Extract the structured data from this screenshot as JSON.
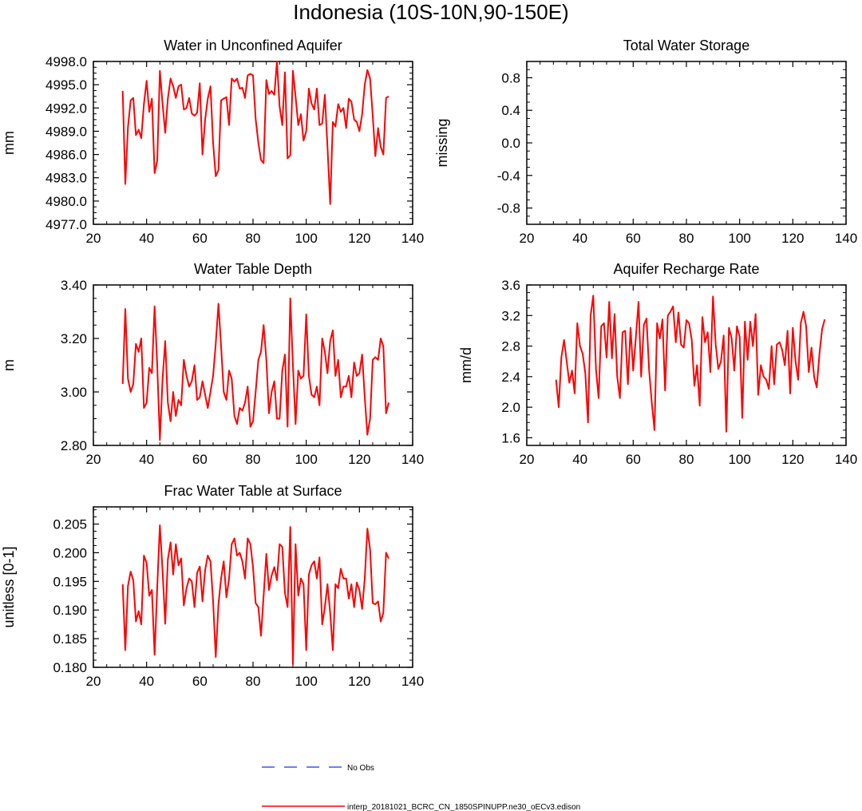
{
  "page_title": "Indonesia (10S-10N,90-150E)",
  "colors": {
    "model": "#ff0000",
    "obs": "#3355ff",
    "axis": "#000000"
  },
  "legend": {
    "obs_label": "No Obs",
    "model_label": "interp_20181021_BCRC_CN_1850SPINUPP.ne30_oECv3.edison"
  },
  "chart_data": [
    {
      "id": "aquifer",
      "type": "line",
      "title": "Water in Unconfined Aquifer",
      "xlabel": "",
      "ylabel": "mm",
      "xlim": [
        20,
        140
      ],
      "ylim": [
        4977,
        4998
      ],
      "xticks": [
        20,
        40,
        60,
        80,
        100,
        120,
        140
      ],
      "yticks": [
        4977,
        4980,
        4983,
        4986,
        4989,
        4992,
        4995,
        4998
      ],
      "yticklabels": [
        "4977.0",
        "4980.0",
        "4983.0",
        "4986.0",
        "4989.0",
        "4992.0",
        "4995.0",
        "4998.0"
      ],
      "x_start": 31,
      "series": [
        {
          "name": "interp_20181021_BCRC_CN_1850SPINUPP.ne30_oECv3.edison",
          "values": [
            4994.2,
            4982.2,
            4989.5,
            4993.0,
            4993.3,
            4988.5,
            4989.2,
            4988.1,
            4992.5,
            4995.5,
            4991.5,
            4993.2,
            4983.6,
            4985.2,
            4996.8,
            4992.5,
            4988.8,
            4993.2,
            4995.8,
            4994.8,
            4993.3,
            4994.8,
            4995.0,
            4991.8,
            4992.0,
            4993.3,
            4991.3,
            4991.0,
            4991.4,
            4995.2,
            4986.0,
            4990.5,
            4993.2,
            4994.8,
            4987.5,
            4983.2,
            4984.0,
            4993.0,
            4993.2,
            4993.4,
            4989.8,
            4995.8,
            4995.4,
            4995.8,
            4994.5,
            4994.6,
            4993.3,
            4996.2,
            4996.4,
            4996.2,
            4990.6,
            4987.5,
            4985.3,
            4984.9,
            4995.6,
            4993.8,
            4994.2,
            4993.7,
            4998.0,
            4992.2,
            4989.8,
            4996.6,
            4985.5,
            4985.9,
            4996.8,
            4993.5,
            4989.8,
            4991.2,
            4987.8,
            4989.0,
            4994.5,
            4992.6,
            4991.8,
            4994.5,
            4989.8,
            4990.0,
            4993.7,
            4987.0,
            4979.6,
            4990.2,
            4989.6,
            4992.5,
            4991.5,
            4992.0,
            4989.4,
            4993.2,
            4992.8,
            4990.5,
            4990.2,
            4989.0,
            4991.2,
            4995.0,
            4996.9,
            4995.8,
            4991.0,
            4985.8,
            4989.4,
            4987.0,
            4986.0,
            4993.3,
            4993.5
          ]
        }
      ]
    },
    {
      "id": "tws",
      "type": "line",
      "title": "Total Water Storage",
      "xlabel": "",
      "ylabel": "missing",
      "xlim": [
        20,
        140
      ],
      "ylim": [
        -1,
        1
      ],
      "xticks": [
        20,
        40,
        60,
        80,
        100,
        120,
        140
      ],
      "yticks": [
        -0.8,
        -0.4,
        0,
        0.4,
        0.8
      ],
      "yticklabels": [
        "-0.8",
        "-0.4",
        "0.0",
        "0.4",
        "0.8"
      ],
      "x_start": 31,
      "series": []
    },
    {
      "id": "wtd",
      "type": "line",
      "title": "Water Table Depth",
      "xlabel": "",
      "ylabel": "m",
      "xlim": [
        20,
        140
      ],
      "ylim": [
        2.8,
        3.4
      ],
      "xticks": [
        20,
        40,
        60,
        80,
        100,
        120,
        140
      ],
      "yticks": [
        2.8,
        3.0,
        3.2,
        3.4
      ],
      "yticklabels": [
        "2.80",
        "3.00",
        "3.20",
        "3.40"
      ],
      "x_start": 31,
      "series": [
        {
          "name": "interp_20181021_BCRC_CN_1850SPINUPP.ne30_oECv3.edison",
          "values": [
            3.03,
            3.31,
            3.05,
            3.0,
            3.03,
            3.18,
            3.15,
            3.2,
            2.94,
            2.96,
            3.09,
            3.07,
            3.32,
            3.1,
            2.82,
            3.05,
            3.19,
            2.96,
            2.89,
            3.0,
            2.91,
            2.97,
            2.95,
            3.12,
            3.06,
            3.02,
            3.04,
            3.1,
            2.97,
            2.98,
            3.04,
            2.99,
            2.94,
            3.0,
            3.06,
            3.18,
            3.33,
            3.17,
            3.0,
            2.97,
            3.08,
            3.05,
            2.91,
            2.88,
            2.94,
            2.93,
            2.96,
            3.02,
            2.87,
            2.89,
            3.0,
            3.12,
            3.15,
            3.25,
            3.12,
            2.92,
            3.0,
            3.04,
            2.9,
            2.9,
            3.08,
            3.14,
            2.87,
            3.35,
            3.1,
            2.88,
            3.08,
            3.05,
            3.06,
            3.29,
            3.06,
            2.99,
            2.98,
            3.02,
            2.95,
            3.2,
            3.15,
            3.07,
            3.19,
            3.23,
            3.06,
            3.12,
            2.98,
            3.02,
            3.02,
            3.06,
            2.98,
            3.11,
            3.06,
            3.07,
            3.14,
            2.98,
            2.84,
            2.9,
            3.12,
            3.13,
            3.12,
            3.2,
            3.17,
            2.92,
            2.96
          ]
        }
      ]
    },
    {
      "id": "recharge",
      "type": "line",
      "title": "Aquifer Recharge Rate",
      "xlabel": "",
      "ylabel": "mm/d",
      "xlim": [
        20,
        140
      ],
      "ylim": [
        1.5,
        3.6
      ],
      "xticks": [
        20,
        40,
        60,
        80,
        100,
        120,
        140
      ],
      "yticks": [
        1.6,
        2.0,
        2.4,
        2.8,
        3.2,
        3.6
      ],
      "yticklabels": [
        "1.6",
        "2.0",
        "2.4",
        "2.8",
        "3.2",
        "3.6"
      ],
      "x_start": 31,
      "series": [
        {
          "name": "interp_20181021_BCRC_CN_1850SPINUPP.ne30_oECv3.edison",
          "values": [
            2.36,
            2.0,
            2.65,
            2.88,
            2.6,
            2.32,
            2.48,
            2.18,
            3.1,
            2.8,
            2.7,
            2.45,
            1.8,
            3.2,
            3.46,
            2.5,
            2.12,
            3.06,
            3.1,
            2.65,
            3.38,
            2.64,
            3.22,
            2.4,
            2.12,
            2.98,
            3.0,
            2.3,
            3.04,
            2.48,
            2.92,
            3.38,
            2.4,
            3.08,
            3.16,
            2.48,
            2.05,
            1.7,
            3.1,
            2.9,
            3.15,
            2.22,
            3.2,
            3.25,
            3.32,
            2.85,
            3.24,
            2.82,
            2.78,
            3.14,
            3.1,
            2.88,
            2.28,
            2.55,
            2.02,
            3.18,
            2.85,
            2.98,
            2.46,
            3.45,
            2.82,
            2.5,
            2.6,
            2.94,
            1.68,
            3.04,
            2.9,
            2.48,
            3.06,
            2.92,
            1.86,
            3.12,
            2.62,
            3.12,
            2.8,
            3.22,
            2.16,
            2.55,
            2.4,
            2.36,
            2.24,
            2.8,
            2.3,
            2.82,
            2.85,
            2.75,
            2.55,
            3.0,
            2.18,
            3.04,
            2.6,
            2.36,
            3.1,
            3.25,
            3.06,
            2.46,
            2.78,
            2.4,
            2.26,
            2.7,
            3.02,
            3.15
          ]
        }
      ]
    },
    {
      "id": "fwt",
      "type": "line",
      "title": "Frac Water Table at Surface",
      "xlabel": "",
      "ylabel": "unitless [0-1]",
      "xlim": [
        20,
        140
      ],
      "ylim": [
        0.18,
        0.208
      ],
      "xticks": [
        20,
        40,
        60,
        80,
        100,
        120,
        140
      ],
      "yticks": [
        0.18,
        0.185,
        0.19,
        0.195,
        0.2,
        0.205
      ],
      "yticklabels": [
        "0.180",
        "0.185",
        "0.190",
        "0.195",
        "0.200",
        "0.205"
      ],
      "x_start": 31,
      "series": [
        {
          "name": "interp_20181021_BCRC_CN_1850SPINUPP.ne30_oECv3.edison",
          "values": [
            0.1945,
            0.183,
            0.1942,
            0.1967,
            0.1952,
            0.188,
            0.1898,
            0.1875,
            0.1995,
            0.1982,
            0.1925,
            0.1935,
            0.1822,
            0.194,
            0.2048,
            0.1968,
            0.1876,
            0.1988,
            0.2018,
            0.1962,
            0.2015,
            0.1978,
            0.199,
            0.1908,
            0.1938,
            0.1955,
            0.195,
            0.1905,
            0.1965,
            0.1976,
            0.1915,
            0.197,
            0.1995,
            0.1985,
            0.1915,
            0.1818,
            0.191,
            0.1955,
            0.1985,
            0.1922,
            0.1955,
            0.2015,
            0.2025,
            0.1995,
            0.2,
            0.1985,
            0.1955,
            0.2025,
            0.2015,
            0.1975,
            0.1912,
            0.1905,
            0.1855,
            0.1925,
            0.1998,
            0.1935,
            0.196,
            0.1975,
            0.1952,
            0.2015,
            0.201,
            0.193,
            0.1905,
            0.2045,
            0.1805,
            0.2015,
            0.1925,
            0.1955,
            0.1945,
            0.183,
            0.1962,
            0.1978,
            0.1985,
            0.1955,
            0.1992,
            0.1875,
            0.1905,
            0.1945,
            0.1895,
            0.183,
            0.1945,
            0.1938,
            0.1972,
            0.1955,
            0.1955,
            0.192,
            0.1945,
            0.1905,
            0.1948,
            0.1935,
            0.1902,
            0.1955,
            0.2042,
            0.2005,
            0.1912,
            0.191,
            0.1915,
            0.188,
            0.1895,
            0.2,
            0.199
          ]
        }
      ]
    }
  ]
}
